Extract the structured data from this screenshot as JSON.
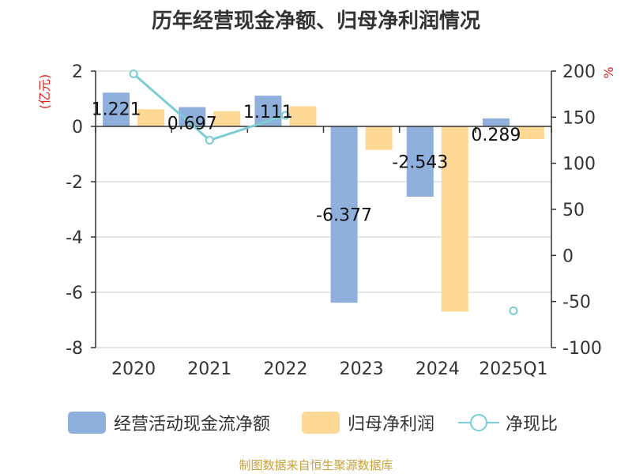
{
  "title": "历年经营现金净额、归母净利润情况",
  "source": "制图数据来自恒生聚源数据库",
  "colors": {
    "cash": "#8fb0dd",
    "profit": "#fed895",
    "ratio": "#7ccdd6",
    "unit": "#e0201e",
    "axis": "#333333",
    "grid": "#cccccc"
  },
  "chart_data": {
    "type": "bar",
    "categories": [
      "2020",
      "2021",
      "2022",
      "2023",
      "2024",
      "2025Q1"
    ],
    "y_left": {
      "label": "(亿元)",
      "ticks": [
        "2",
        "0",
        "-2",
        "-4",
        "-6",
        "-8"
      ],
      "ylim": [
        -8,
        2
      ]
    },
    "y_right": {
      "label": "%",
      "ticks": [
        "200",
        "150",
        "100",
        "50",
        "0",
        "-50",
        "-100"
      ],
      "ylim": [
        -100,
        200
      ]
    },
    "grid": true,
    "legend_position": "bottom",
    "series": [
      {
        "name": "经营活动现金流净额",
        "type": "bar",
        "axis": "left",
        "values": [
          1.221,
          0.697,
          1.111,
          -6.377,
          -2.543,
          0.289
        ],
        "labels": [
          "1.221",
          "0.697",
          "1.111",
          "-6.377",
          "-2.543",
          "0.289"
        ]
      },
      {
        "name": "归母净利润",
        "type": "bar",
        "axis": "left",
        "values": [
          0.62,
          0.55,
          0.73,
          -0.85,
          -6.7,
          -0.46
        ]
      },
      {
        "name": "净现比",
        "type": "line",
        "axis": "right",
        "values": [
          197,
          125,
          152,
          null,
          null,
          -60
        ]
      }
    ]
  }
}
